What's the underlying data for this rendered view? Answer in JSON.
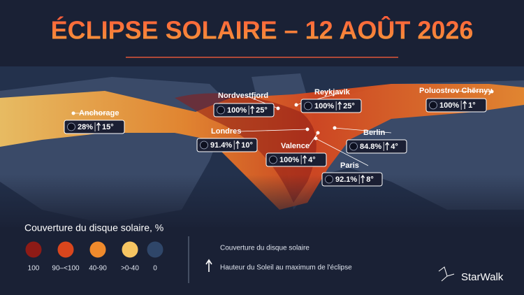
{
  "title": "ÉCLIPSE SOLAIRE – 12 AOÛT 2026",
  "cities": [
    {
      "name": "Anchorage",
      "coverage": "28%",
      "altitude": "15°"
    },
    {
      "name": "Nordvestfjord",
      "coverage": "100%",
      "altitude": "25°"
    },
    {
      "name": "Reykjavik",
      "coverage": "100%",
      "altitude": "25°"
    },
    {
      "name": "Poluostrov Chërnyy",
      "coverage": "100%",
      "altitude": "1°"
    },
    {
      "name": "Londres",
      "coverage": "91.4%",
      "altitude": "10°"
    },
    {
      "name": "Berlin",
      "coverage": "84.8%",
      "altitude": "4°"
    },
    {
      "name": "Valence",
      "coverage": "100%",
      "altitude": "4°"
    },
    {
      "name": "Paris",
      "coverage": "92.1%",
      "altitude": "8°"
    }
  ],
  "legend": {
    "title": "Couverture du disque solaire, %",
    "items": [
      {
        "label": "100",
        "color": "#8e1b16"
      },
      {
        "label": "90–<100",
        "color": "#d9461d"
      },
      {
        "label": "40-90",
        "color": "#ef8a2c"
      },
      {
        "label": ">0-40",
        "color": "#f6c562"
      },
      {
        "label": "0",
        "color": "#2f4669"
      }
    ]
  },
  "key": {
    "coverage": "Couverture du disque solaire",
    "altitude": "Hauteur du Soleil au maximum de l'éclipse"
  },
  "brand": "StarWalk"
}
